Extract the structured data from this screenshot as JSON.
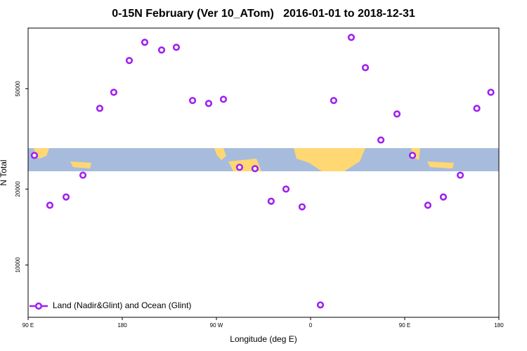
{
  "chart_data": {
    "type": "scatter",
    "title": "0-15N February (Ver 10_ATom)   2016-01-01 to 2018-12-31",
    "x_label": "Longitude (deg E)",
    "y_label": "N Total",
    "xlim": [
      90,
      540
    ],
    "ylim": [
      6200,
      87000
    ],
    "y_log": true,
    "xticks": [
      {
        "value": 90,
        "label": "90 E"
      },
      {
        "value": 180,
        "label": "180"
      },
      {
        "value": 270,
        "label": "90 W"
      },
      {
        "value": 360,
        "label": "0"
      },
      {
        "value": 450,
        "label": "90 E"
      },
      {
        "value": 540,
        "label": "180"
      }
    ],
    "yticks": [
      10000,
      20000,
      50000
    ],
    "legend_position": "bottom-left",
    "series": [
      {
        "name": "Land (Nadir&Glint) and Ocean (Glint)",
        "color": "#a020f0",
        "x": [
          96,
          110.8,
          126.3,
          142.4,
          158.5,
          171.9,
          186.7,
          201.5,
          217.6,
          231.7,
          247.2,
          262.6,
          276.7,
          292.1,
          306.9,
          322.3,
          336.5,
          351.9,
          369.4,
          382.1,
          398.9,
          412.4,
          427.2,
          442.6,
          457.4,
          472.1,
          486.9,
          503.1,
          518.9,
          532.3
        ],
        "values": [
          27200,
          17250,
          18600,
          22700,
          41800,
          48400,
          64700,
          76400,
          71200,
          73000,
          44900,
          43700,
          45400,
          24400,
          24100,
          17900,
          20000,
          17000,
          6940,
          44900,
          79900,
          60600,
          31300,
          39700,
          27200,
          17250,
          18600,
          22700,
          41800,
          48400
        ]
      }
    ]
  }
}
